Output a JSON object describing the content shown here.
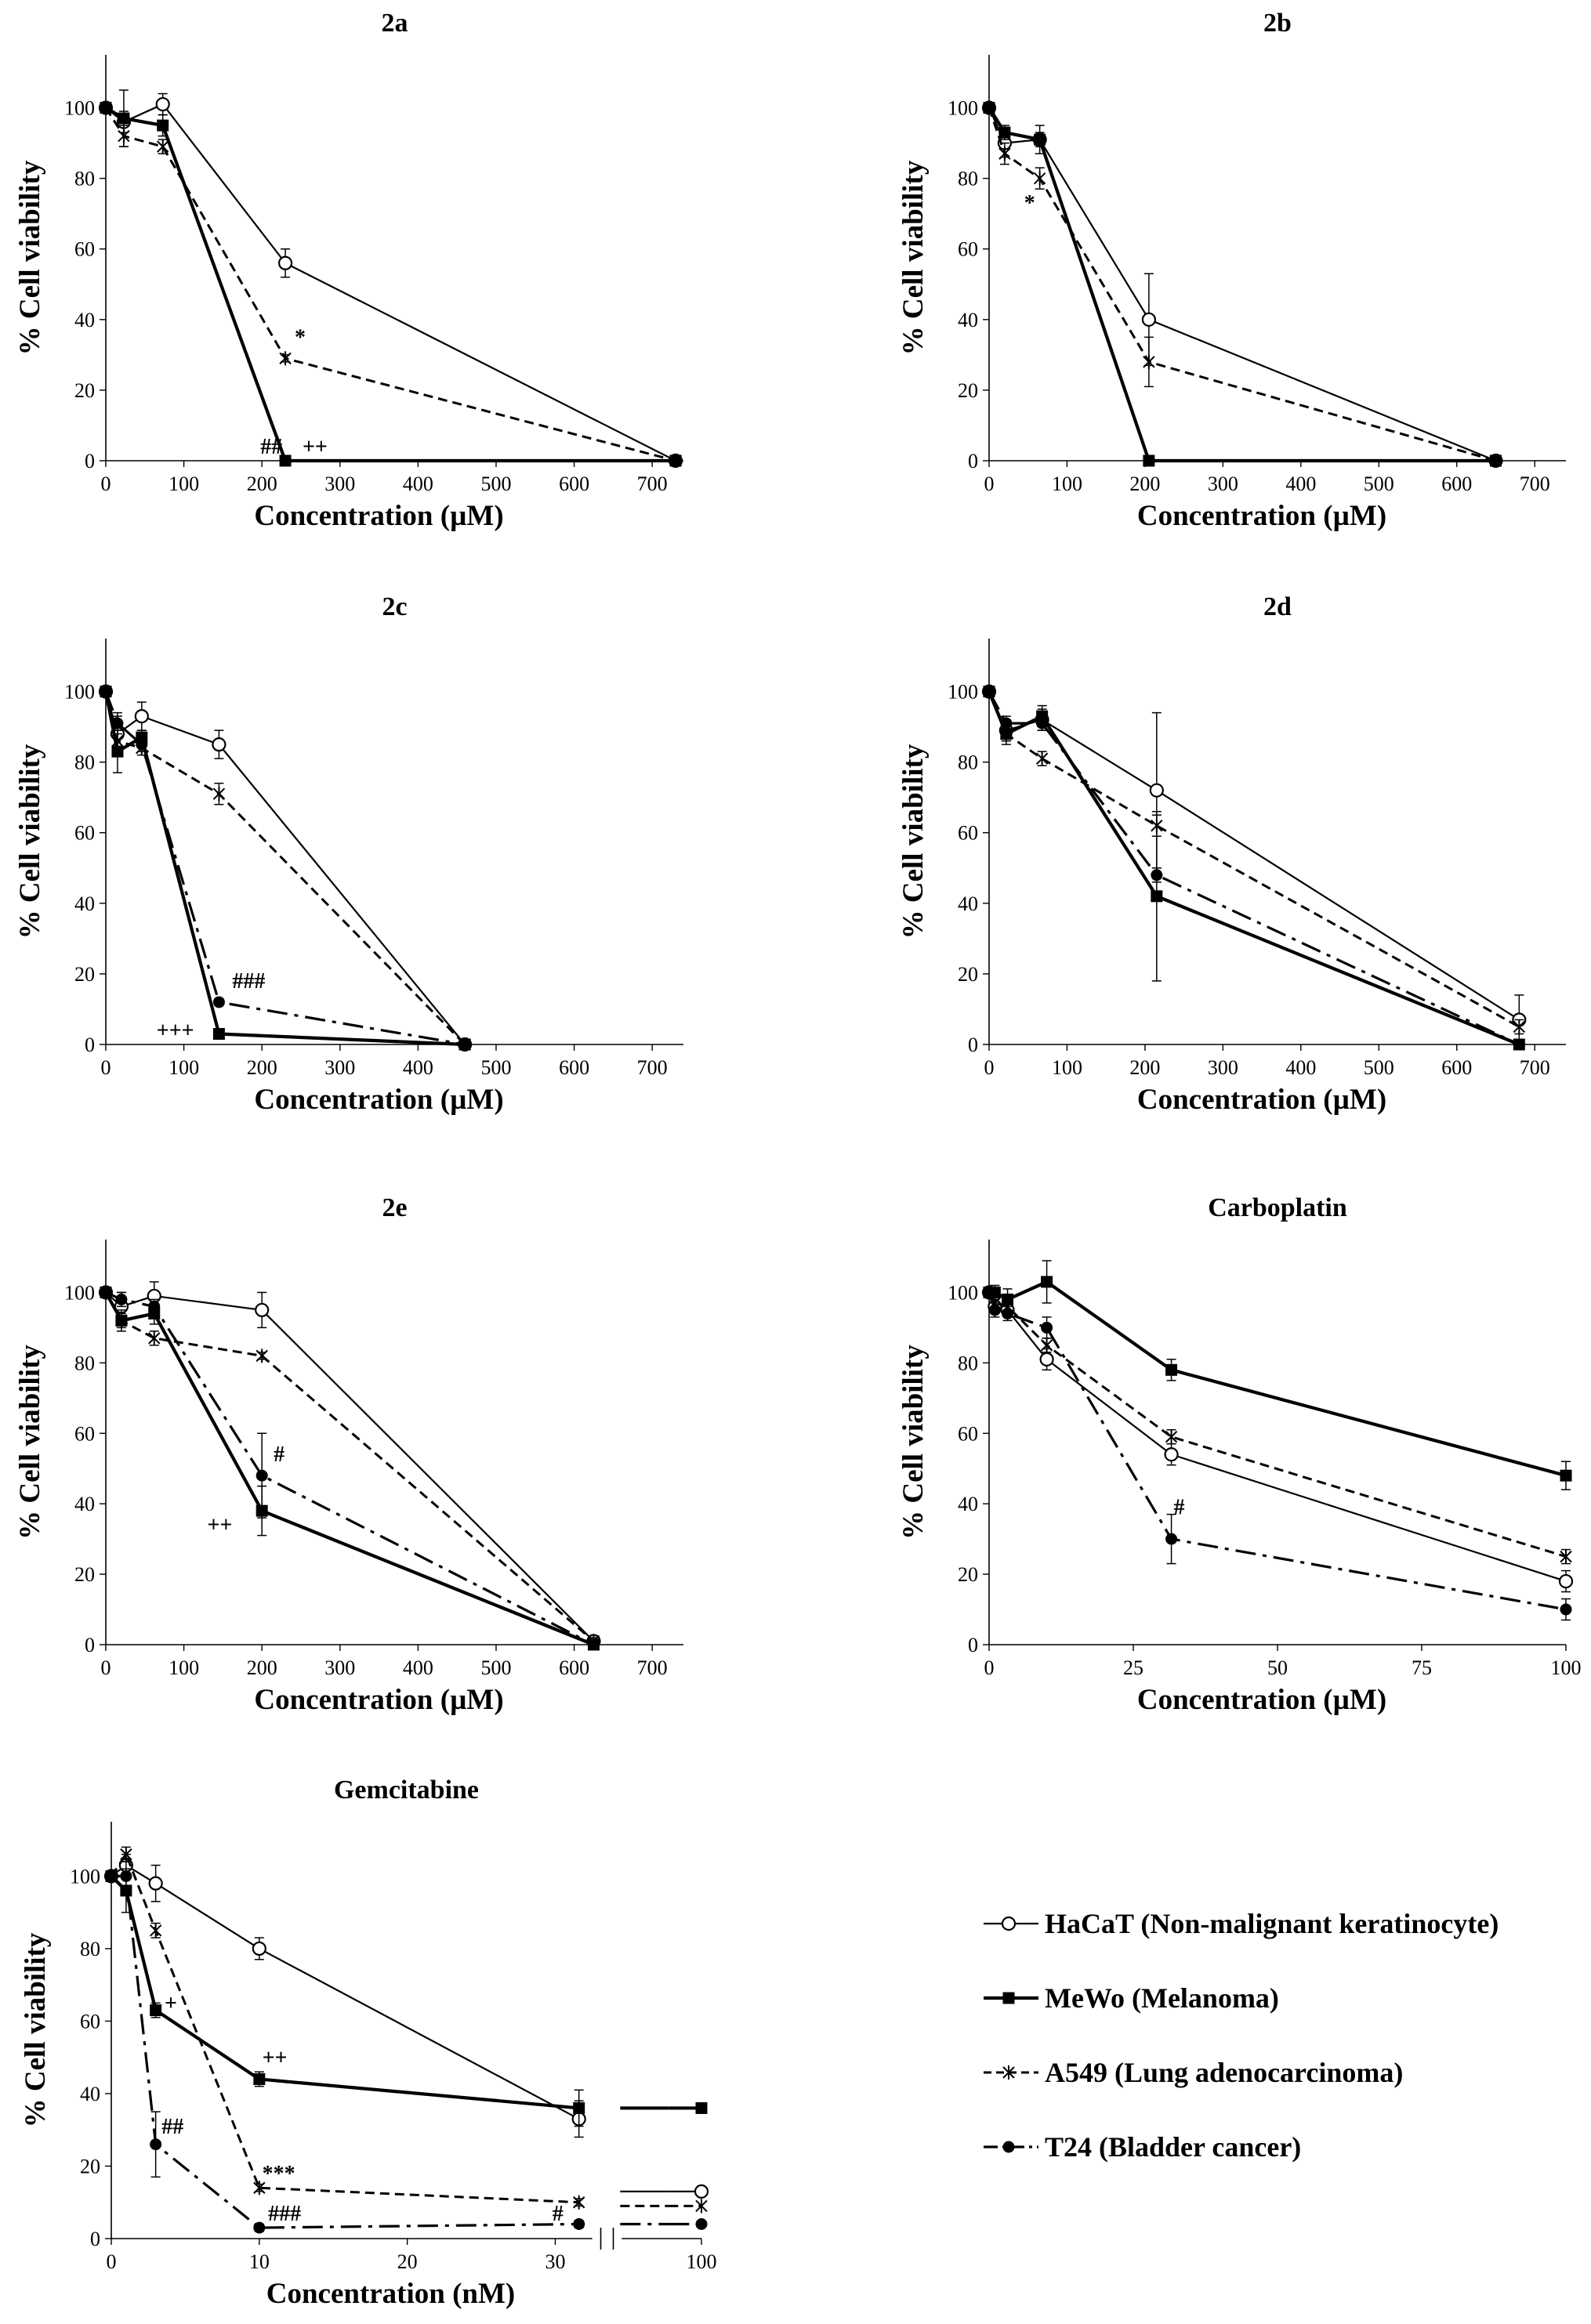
{
  "figure": {
    "legend": [
      {
        "name": "HaCaT (Non-malignant keratinocyte)",
        "marker": "circle-open",
        "dash": "solid-thin"
      },
      {
        "name": "MeWo (Melanoma)",
        "marker": "square",
        "dash": "solid-thick"
      },
      {
        "name": "A549 (Lung adenocarcinoma)",
        "marker": "star",
        "dash": "dashed"
      },
      {
        "name": "T24 (Bladder cancer)",
        "marker": "circle-filled",
        "dash": "dashdot"
      }
    ]
  },
  "chart_data": [
    {
      "type": "line",
      "title": "2a",
      "xlabel": "Concentration (µM)",
      "ylabel": "% Cell viability",
      "xlim": [
        0,
        740
      ],
      "xticks": [
        0,
        100,
        200,
        300,
        400,
        500,
        600,
        700
      ],
      "ylim": [
        0,
        115
      ],
      "yticks": [
        0,
        20,
        40,
        60,
        80,
        100
      ],
      "series": [
        {
          "name": "HaCaT",
          "x": [
            0,
            23,
            73,
            230,
            730
          ],
          "y": [
            100,
            96,
            101,
            56,
            0
          ],
          "err": [
            0,
            3,
            3,
            4,
            0
          ]
        },
        {
          "name": "MeWo",
          "x": [
            0,
            23,
            73,
            230,
            730
          ],
          "y": [
            100,
            97,
            95,
            0,
            0
          ],
          "err": [
            0,
            8,
            3,
            0,
            0
          ]
        },
        {
          "name": "A549",
          "x": [
            0,
            23,
            73,
            230,
            730
          ],
          "y": [
            100,
            92,
            89,
            29,
            0
          ],
          "err": [
            0,
            3,
            2,
            1,
            0
          ]
        }
      ],
      "annotations": [
        {
          "text": "*",
          "x": 242,
          "y": 33
        },
        {
          "text": "##",
          "x": 198,
          "y": 2
        },
        {
          "text": "++",
          "x": 252,
          "y": 2
        }
      ]
    },
    {
      "type": "line",
      "title": "2b",
      "xlabel": "Concentration (µM)",
      "ylabel": "% Cell viability",
      "xlim": [
        0,
        740
      ],
      "xticks": [
        0,
        100,
        200,
        300,
        400,
        500,
        600,
        700
      ],
      "ylim": [
        0,
        115
      ],
      "yticks": [
        0,
        20,
        40,
        60,
        80,
        100
      ],
      "series": [
        {
          "name": "HaCaT",
          "x": [
            0,
            20,
            65,
            205,
            650
          ],
          "y": [
            100,
            90,
            91,
            40,
            0
          ],
          "err": [
            0,
            4,
            4,
            13,
            0
          ]
        },
        {
          "name": "MeWo",
          "x": [
            0,
            20,
            65,
            205,
            650
          ],
          "y": [
            100,
            93,
            91,
            0,
            0
          ],
          "err": [
            0,
            2,
            2,
            0,
            0
          ]
        },
        {
          "name": "A549",
          "x": [
            0,
            20,
            65,
            205,
            650
          ],
          "y": [
            100,
            87,
            80,
            28,
            0
          ],
          "err": [
            0,
            3,
            3,
            7,
            0
          ]
        }
      ],
      "annotations": [
        {
          "text": "*",
          "x": 45,
          "y": 71
        }
      ]
    },
    {
      "type": "line",
      "title": "2c",
      "xlabel": "Concentration (µM)",
      "ylabel": "% Cell viability",
      "xlim": [
        0,
        740
      ],
      "xticks": [
        0,
        100,
        200,
        300,
        400,
        500,
        600,
        700
      ],
      "ylim": [
        0,
        115
      ],
      "yticks": [
        0,
        20,
        40,
        60,
        80,
        100
      ],
      "series": [
        {
          "name": "HaCaT",
          "x": [
            0,
            15,
            46,
            145,
            460
          ],
          "y": [
            100,
            88,
            93,
            85,
            0
          ],
          "err": [
            0,
            5,
            4,
            4,
            0
          ]
        },
        {
          "name": "MeWo",
          "x": [
            0,
            15,
            46,
            145,
            460
          ],
          "y": [
            100,
            83,
            87,
            3,
            0
          ],
          "err": [
            0,
            6,
            2,
            0,
            0
          ]
        },
        {
          "name": "A549",
          "x": [
            0,
            15,
            46,
            145,
            460
          ],
          "y": [
            100,
            86,
            84,
            71,
            0
          ],
          "err": [
            0,
            3,
            2,
            3,
            0
          ]
        },
        {
          "name": "T24",
          "x": [
            0,
            15,
            46,
            145,
            460
          ],
          "y": [
            100,
            91,
            85,
            12,
            0
          ],
          "err": [
            0,
            3,
            2,
            1,
            0
          ]
        }
      ],
      "annotations": [
        {
          "text": "###",
          "x": 162,
          "y": 16
        },
        {
          "text": "+++",
          "x": 65,
          "y": 2
        }
      ]
    },
    {
      "type": "line",
      "title": "2d",
      "xlabel": "Concentration (µM)",
      "ylabel": "% Cell viability",
      "xlim": [
        0,
        740
      ],
      "xticks": [
        0,
        100,
        200,
        300,
        400,
        500,
        600,
        700
      ],
      "ylim": [
        0,
        115
      ],
      "yticks": [
        0,
        20,
        40,
        60,
        80,
        100
      ],
      "series": [
        {
          "name": "HaCaT",
          "x": [
            0,
            22,
            68,
            215,
            680
          ],
          "y": [
            100,
            89,
            92,
            72,
            7
          ],
          "err": [
            0,
            3,
            3,
            22,
            7
          ]
        },
        {
          "name": "MeWo",
          "x": [
            0,
            22,
            68,
            215,
            680
          ],
          "y": [
            100,
            88,
            93,
            42,
            0
          ],
          "err": [
            0,
            3,
            3,
            24,
            0
          ]
        },
        {
          "name": "A549",
          "x": [
            0,
            22,
            68,
            215,
            680
          ],
          "y": [
            100,
            88,
            81,
            62,
            5
          ],
          "err": [
            0,
            2,
            2,
            3,
            2
          ]
        },
        {
          "name": "T24",
          "x": [
            0,
            22,
            68,
            215,
            680
          ],
          "y": [
            100,
            91,
            91,
            48,
            0
          ],
          "err": [
            0,
            2,
            2,
            2,
            0
          ]
        }
      ],
      "annotations": []
    },
    {
      "type": "line",
      "title": "2e",
      "xlabel": "Concentration (µM)",
      "ylabel": "% Cell viability",
      "xlim": [
        0,
        740
      ],
      "xticks": [
        0,
        100,
        200,
        300,
        400,
        500,
        600,
        700
      ],
      "ylim": [
        0,
        115
      ],
      "yticks": [
        0,
        20,
        40,
        60,
        80,
        100
      ],
      "series": [
        {
          "name": "HaCaT",
          "x": [
            0,
            20,
            62,
            200,
            625
          ],
          "y": [
            100,
            96,
            99,
            95,
            1
          ],
          "err": [
            0,
            4,
            4,
            5,
            1
          ]
        },
        {
          "name": "MeWo",
          "x": [
            0,
            20,
            62,
            200,
            625
          ],
          "y": [
            100,
            92,
            94,
            38,
            0
          ],
          "err": [
            0,
            3,
            3,
            7,
            0
          ]
        },
        {
          "name": "A549",
          "x": [
            0,
            20,
            62,
            200,
            625
          ],
          "y": [
            100,
            92,
            87,
            82,
            1
          ],
          "err": [
            0,
            2,
            2,
            1,
            1
          ]
        },
        {
          "name": "T24",
          "x": [
            0,
            20,
            62,
            200,
            625
          ],
          "y": [
            100,
            98,
            96,
            48,
            0
          ],
          "err": [
            0,
            2,
            2,
            12,
            0
          ]
        }
      ],
      "annotations": [
        {
          "text": "#",
          "x": 215,
          "y": 52
        },
        {
          "text": "++",
          "x": 130,
          "y": 32
        }
      ]
    },
    {
      "type": "line",
      "title": "Carboplatin",
      "xlabel": "Concentration (µM)",
      "ylabel": "% Cell viability",
      "xlim": [
        0,
        100
      ],
      "xticks": [
        0,
        25,
        50,
        75,
        100
      ],
      "ylim": [
        0,
        115
      ],
      "yticks": [
        0,
        20,
        40,
        60,
        80,
        100
      ],
      "series": [
        {
          "name": "HaCaT",
          "x": [
            0,
            1,
            3.2,
            10,
            31.6,
            100
          ],
          "y": [
            100,
            96,
            95,
            81,
            54,
            18
          ],
          "err": [
            0,
            2,
            2,
            3,
            3,
            3
          ]
        },
        {
          "name": "MeWo",
          "x": [
            0,
            1,
            3.2,
            10,
            31.6,
            100
          ],
          "y": [
            100,
            100,
            98,
            103,
            78,
            48
          ],
          "err": [
            0,
            2,
            3,
            6,
            3,
            4
          ]
        },
        {
          "name": "A549",
          "x": [
            0,
            1,
            3.2,
            10,
            31.6,
            100
          ],
          "y": [
            100,
            97,
            96,
            85,
            59,
            25
          ],
          "err": [
            0,
            2,
            2,
            2,
            2,
            2
          ]
        },
        {
          "name": "T24",
          "x": [
            0,
            1,
            3.2,
            10,
            31.6,
            100
          ],
          "y": [
            100,
            95,
            94,
            90,
            30,
            10
          ],
          "err": [
            0,
            2,
            2,
            3,
            7,
            3
          ]
        }
      ],
      "annotations": [
        {
          "text": "#",
          "x": 32,
          "y": 37
        }
      ]
    },
    {
      "type": "line",
      "title": "Gemcitabine",
      "xlabel": "Concentration (nM)",
      "ylabel": "% Cell viability",
      "xlim": [
        0,
        100
      ],
      "xticks": [
        0,
        10,
        20,
        30,
        100
      ],
      "ylim": [
        0,
        115
      ],
      "yticks": [
        0,
        20,
        40,
        60,
        80,
        100
      ],
      "series": [
        {
          "name": "HaCaT",
          "x": [
            0,
            1,
            3,
            10,
            31.6,
            100
          ],
          "y": [
            100,
            103,
            98,
            80,
            33,
            13
          ],
          "err": [
            0,
            3,
            5,
            3,
            5,
            3
          ]
        },
        {
          "name": "MeWo",
          "x": [
            0,
            1,
            3,
            10,
            31.6,
            100
          ],
          "y": [
            100,
            96,
            63,
            44,
            36,
            36
          ],
          "err": [
            0,
            6,
            2,
            2,
            5,
            1
          ]
        },
        {
          "name": "A549",
          "x": [
            0,
            1,
            3,
            10,
            31.6,
            100
          ],
          "y": [
            100,
            106,
            85,
            14,
            10,
            9
          ],
          "err": [
            0,
            2,
            2,
            1,
            1,
            1
          ]
        },
        {
          "name": "T24",
          "x": [
            0,
            1,
            3,
            10,
            31.6,
            100
          ],
          "y": [
            100,
            100,
            26,
            3,
            4,
            4
          ],
          "err": [
            0,
            4,
            9,
            1,
            1,
            1
          ]
        }
      ],
      "annotations": [
        {
          "text": "+",
          "x": 3.6,
          "y": 63
        },
        {
          "text": "++",
          "x": 10.2,
          "y": 48
        },
        {
          "text": "##",
          "x": 3.4,
          "y": 29
        },
        {
          "text": "***",
          "x": 10.2,
          "y": 16
        },
        {
          "text": "###",
          "x": 10.6,
          "y": 5
        },
        {
          "text": "#",
          "x": 29.8,
          "y": 5
        }
      ]
    }
  ]
}
